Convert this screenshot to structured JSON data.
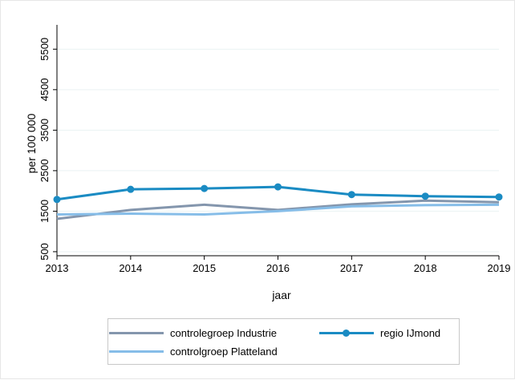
{
  "chart_data": {
    "type": "line",
    "x": [
      2013,
      2014,
      2015,
      2016,
      2017,
      2018,
      2019
    ],
    "xlabel": "jaar",
    "ylabel": "per 100 000",
    "ylim": [
      400,
      6100
    ],
    "yticks": [
      "500",
      "1500",
      "2500",
      "3500",
      "4500",
      "5500"
    ],
    "xticks": [
      "2013",
      "2014",
      "2015",
      "2016",
      "2017",
      "2018",
      "2019"
    ],
    "grid": "horizontal",
    "legend_position": "bottom",
    "series": [
      {
        "name": "controlegroep Industrie",
        "color": "#8496ad",
        "markers": false,
        "values": [
          1310,
          1530,
          1660,
          1530,
          1670,
          1760,
          1720
        ]
      },
      {
        "name": "controlgroep Platteland",
        "color": "#86bde8",
        "markers": false,
        "values": [
          1420,
          1440,
          1420,
          1500,
          1620,
          1650,
          1660
        ]
      },
      {
        "name": "regio IJmond",
        "color": "#1a8bc3",
        "markers": true,
        "values": [
          1790,
          2040,
          2060,
          2100,
          1910,
          1870,
          1850
        ]
      }
    ]
  }
}
